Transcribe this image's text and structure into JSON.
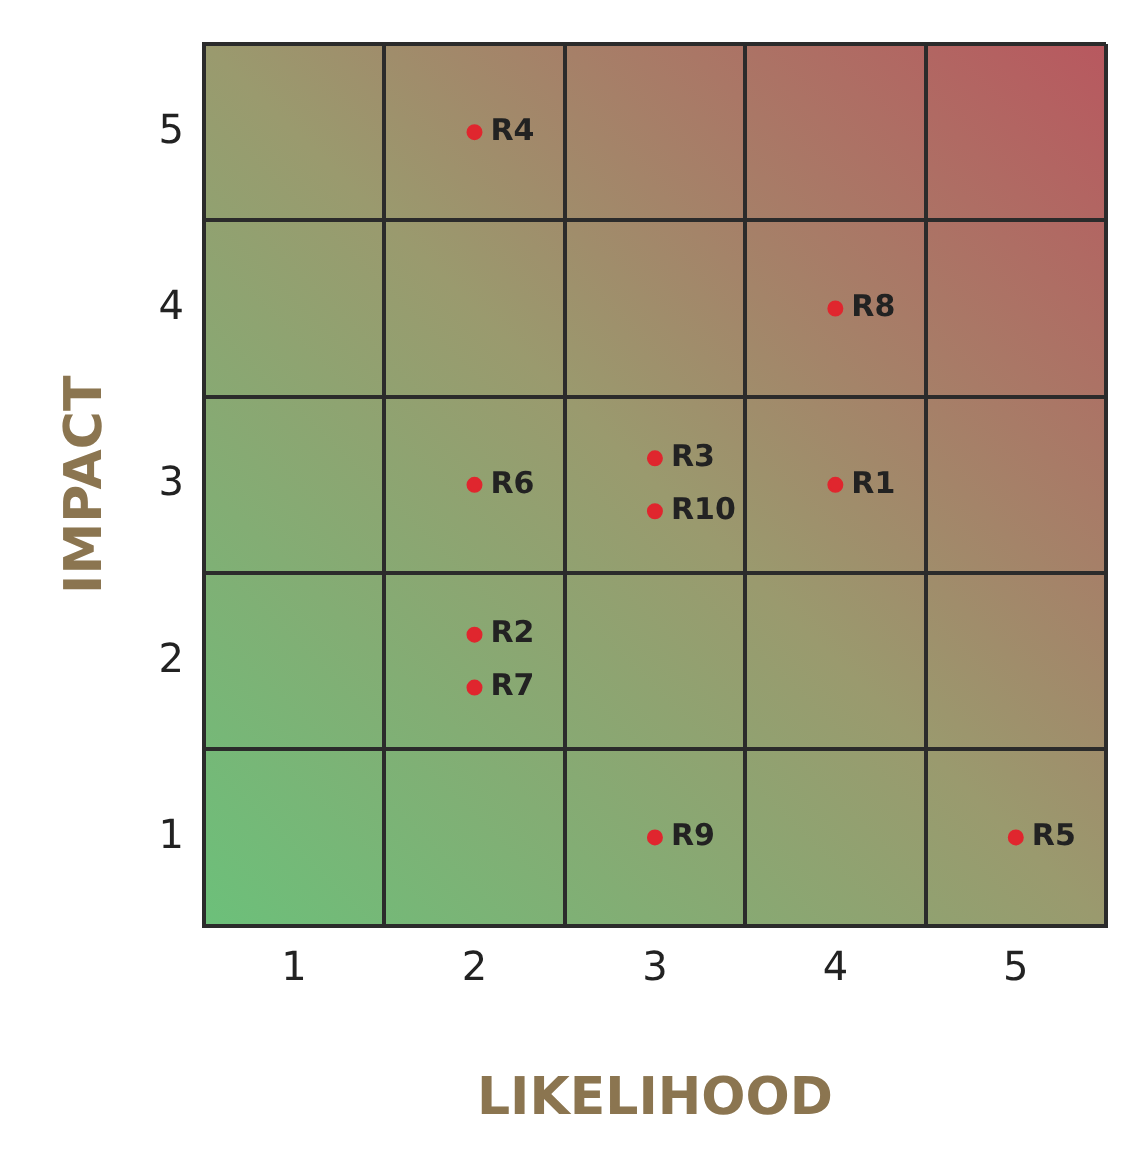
{
  "chart_data": {
    "type": "scatter",
    "xlabel": "LIKELIHOOD",
    "ylabel": "IMPACT",
    "x": [
      4,
      2,
      3,
      2,
      5,
      2,
      2,
      4,
      3,
      3
    ],
    "values": [
      3,
      2.15,
      3.15,
      5,
      1,
      3,
      1.85,
      4,
      1,
      2.85
    ],
    "color": "#e0262e",
    "xlim": [
      0.5,
      5.5
    ],
    "ylim": [
      0.5,
      5.5
    ],
    "xticks": [
      {
        "value": 0.5,
        "label": null
      },
      1,
      {
        "value": 1.5,
        "label": null
      },
      2,
      {
        "value": 2.5,
        "label": null
      },
      3,
      {
        "value": 3.5,
        "label": null
      },
      4,
      {
        "value": 4.5,
        "label": null
      },
      5,
      {
        "value": 5.5,
        "label": null
      }
    ],
    "yticks": [
      {
        "value": 0.5,
        "label": null
      },
      1,
      {
        "value": 1.5,
        "label": null
      },
      2,
      {
        "value": 2.5,
        "label": null
      },
      3,
      {
        "value": 3.5,
        "label": null
      },
      4,
      {
        "value": 4.5,
        "label": null
      },
      5,
      {
        "value": 5.5,
        "label": null
      }
    ],
    "grid": true,
    "marker": "circle",
    "annotations": [
      {
        "text": "R1",
        "x": 4,
        "y": 3
      },
      {
        "text": "R2",
        "x": 2,
        "y": 2.15
      },
      {
        "text": "R3",
        "x": 3,
        "y": 3.15
      },
      {
        "text": "R4",
        "x": 2,
        "y": 5
      },
      {
        "text": "R5",
        "x": 5,
        "y": 1
      },
      {
        "text": "R6",
        "x": 2,
        "y": 3
      },
      {
        "text": "R7",
        "x": 2,
        "y": 1.85
      },
      {
        "text": "R8",
        "x": 4,
        "y": 4
      },
      {
        "text": "R9",
        "x": 3,
        "y": 1
      },
      {
        "text": "R10",
        "x": 3,
        "y": 2.85
      }
    ]
  }
}
